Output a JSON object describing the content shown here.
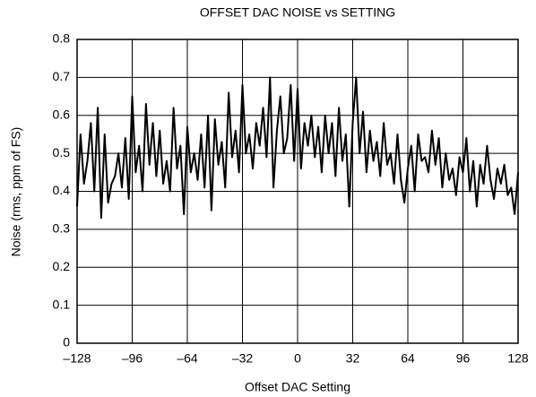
{
  "chart_data": {
    "type": "line",
    "title": "OFFSET DAC NOISE vs SETTING",
    "x_label": "Offset DAC Setting",
    "y_label": "Noise (rms, ppm of FS)",
    "color": "#000000",
    "grid": true,
    "xlim": [
      -128,
      128
    ],
    "ylim": [
      0,
      0.8
    ],
    "xticks": [
      {
        "value": -128,
        "label": "–128"
      },
      {
        "value": -96,
        "label": "–96"
      },
      {
        "value": -64,
        "label": "–64"
      },
      {
        "value": -32,
        "label": "–32"
      },
      0,
      32,
      64,
      96,
      128
    ],
    "yticks": [
      0,
      0.1,
      0.2,
      0.3,
      0.4,
      0.5,
      0.6,
      0.7,
      0.8
    ],
    "x": [
      -128,
      -126,
      -124,
      -122,
      -120,
      -118,
      -116,
      -114,
      -112,
      -110,
      -108,
      -106,
      -104,
      -102,
      -100,
      -98,
      -96,
      -94,
      -92,
      -90,
      -88,
      -86,
      -84,
      -82,
      -80,
      -78,
      -76,
      -74,
      -72,
      -70,
      -68,
      -66,
      -64,
      -62,
      -60,
      -58,
      -56,
      -54,
      -52,
      -50,
      -48,
      -46,
      -44,
      -42,
      -40,
      -38,
      -36,
      -34,
      -32,
      -30,
      -28,
      -26,
      -24,
      -22,
      -20,
      -18,
      -16,
      -14,
      -12,
      -10,
      -8,
      -6,
      -4,
      -2,
      0,
      2,
      4,
      6,
      8,
      10,
      12,
      14,
      16,
      18,
      20,
      22,
      24,
      26,
      28,
      30,
      32,
      34,
      36,
      38,
      40,
      42,
      44,
      46,
      48,
      50,
      52,
      54,
      56,
      58,
      60,
      62,
      64,
      66,
      68,
      70,
      72,
      74,
      76,
      78,
      80,
      82,
      84,
      86,
      88,
      90,
      92,
      94,
      96,
      98,
      100,
      102,
      104,
      106,
      108,
      110,
      112,
      114,
      116,
      118,
      120,
      122,
      124,
      126,
      128
    ],
    "values": [
      0.36,
      0.55,
      0.42,
      0.48,
      0.58,
      0.4,
      0.62,
      0.33,
      0.55,
      0.37,
      0.42,
      0.44,
      0.5,
      0.41,
      0.54,
      0.38,
      0.65,
      0.45,
      0.52,
      0.4,
      0.63,
      0.47,
      0.58,
      0.44,
      0.56,
      0.42,
      0.48,
      0.4,
      0.62,
      0.46,
      0.52,
      0.34,
      0.57,
      0.45,
      0.5,
      0.43,
      0.55,
      0.41,
      0.6,
      0.35,
      0.59,
      0.47,
      0.53,
      0.41,
      0.66,
      0.49,
      0.56,
      0.45,
      0.68,
      0.5,
      0.55,
      0.46,
      0.58,
      0.52,
      0.62,
      0.49,
      0.7,
      0.41,
      0.56,
      0.65,
      0.5,
      0.54,
      0.68,
      0.48,
      0.67,
      0.46,
      0.58,
      0.52,
      0.6,
      0.49,
      0.57,
      0.45,
      0.6,
      0.5,
      0.58,
      0.44,
      0.62,
      0.48,
      0.55,
      0.36,
      0.58,
      0.7,
      0.5,
      0.61,
      0.45,
      0.56,
      0.48,
      0.53,
      0.44,
      0.58,
      0.47,
      0.5,
      0.42,
      0.55,
      0.43,
      0.37,
      0.46,
      0.52,
      0.4,
      0.55,
      0.48,
      0.49,
      0.45,
      0.56,
      0.47,
      0.54,
      0.41,
      0.5,
      0.43,
      0.46,
      0.39,
      0.49,
      0.45,
      0.54,
      0.4,
      0.48,
      0.36,
      0.47,
      0.42,
      0.52,
      0.43,
      0.38,
      0.46,
      0.42,
      0.47,
      0.39,
      0.41,
      0.34,
      0.45
    ]
  }
}
